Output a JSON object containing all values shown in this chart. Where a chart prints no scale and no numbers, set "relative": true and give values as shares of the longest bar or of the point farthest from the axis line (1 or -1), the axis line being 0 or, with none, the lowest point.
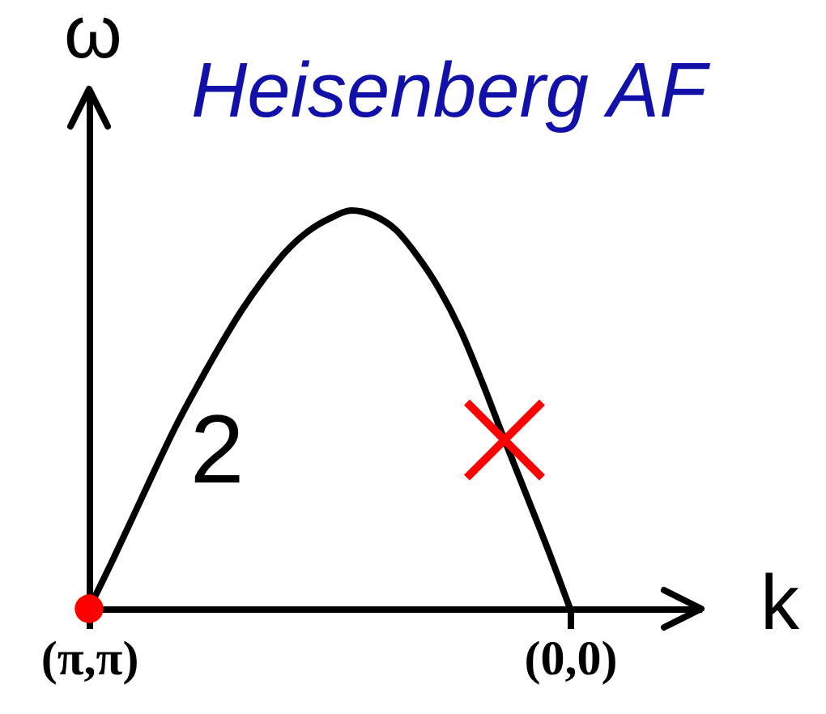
{
  "chart_data": {
    "type": "line",
    "title": "Heisenberg AF",
    "xlabel": "k",
    "ylabel": "ω",
    "relative": true,
    "categories": [
      "(π,π)",
      null,
      null,
      null,
      null,
      null,
      null,
      null,
      null,
      null,
      null,
      null,
      null,
      null,
      null,
      null,
      null,
      null,
      null,
      null,
      null,
      null,
      "(0,0)",
      null,
      null,
      null,
      null,
      null,
      null
    ],
    "series": [
      {
        "color": "#000000",
        "values": [
          0,
          0.113,
          0.23,
          0.348,
          0.462,
          0.564,
          0.661,
          0.751,
          0.829,
          0.897,
          0.947,
          0.98,
          1,
          0.988,
          0.953,
          0.887,
          0.804,
          0.698,
          0.566,
          0.424,
          0.286,
          0.147,
          0,
          null,
          null,
          null,
          null,
          null,
          null
        ]
      },
      {
        "type": "scatter",
        "marker": "circle",
        "color": "#ff0000",
        "values": [
          0,
          null,
          null,
          null,
          null,
          null,
          null,
          null,
          null,
          null,
          null,
          null,
          null,
          null,
          null,
          null,
          null,
          null,
          null,
          null,
          null,
          null,
          null,
          null,
          null,
          null,
          null,
          null,
          null
        ]
      },
      {
        "type": "scatter",
        "marker": "cross",
        "color": "#ff0000",
        "values": [
          null,
          null,
          null,
          null,
          null,
          null,
          null,
          null,
          null,
          null,
          null,
          null,
          null,
          null,
          null,
          null,
          null,
          null,
          null,
          0.424,
          null,
          null,
          null,
          null,
          null,
          null,
          null,
          null,
          null
        ]
      }
    ],
    "annotations": [
      "2"
    ],
    "grid": false,
    "marker": "none",
    "line_style": "solid"
  }
}
